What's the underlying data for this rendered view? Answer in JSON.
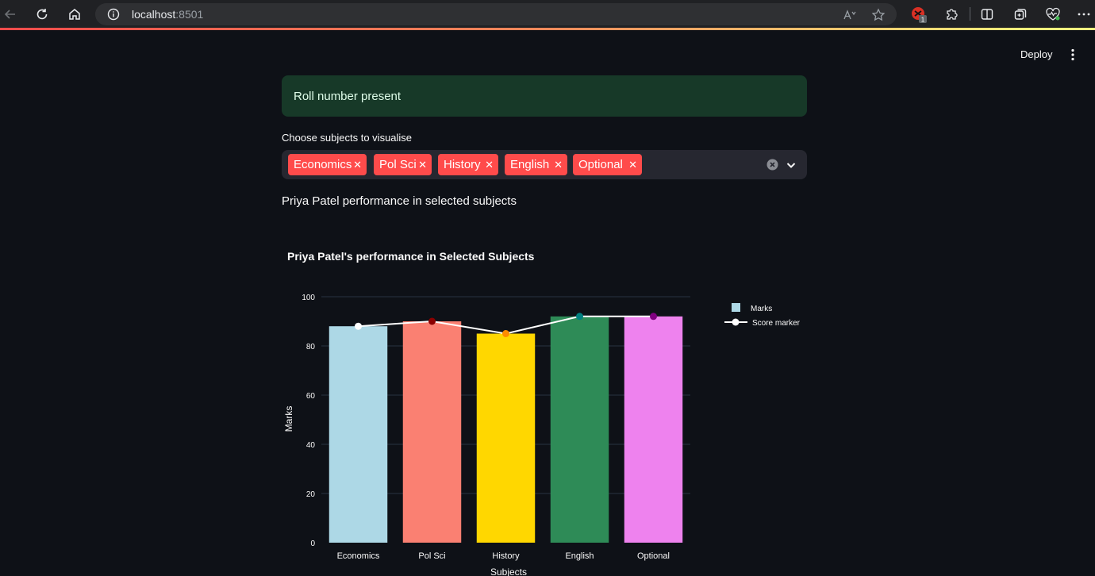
{
  "browser": {
    "url_host": "localhost",
    "url_port": ":8501",
    "extension_badge": "1"
  },
  "header": {
    "deploy_label": "Deploy"
  },
  "main": {
    "success_message": "Roll number present",
    "multiselect": {
      "label": "Choose subjects to visualise",
      "selected": [
        "Economics",
        "Pol Sci",
        "History",
        "English",
        "Optional"
      ]
    },
    "performance_text": "Priya Patel performance in selected subjects"
  },
  "colors": {
    "accent": "#ff4b4b",
    "success_bg": "#173928",
    "page_bg": "#0e1117"
  },
  "chart_data": {
    "type": "bar",
    "title": "Priya Patel's performance in Selected Subjects",
    "xlabel": "Subjects",
    "ylabel": "Marks",
    "ylim": [
      0,
      100
    ],
    "yticks": [
      0,
      20,
      40,
      60,
      80,
      100
    ],
    "categories": [
      "Economics",
      "Pol Sci",
      "History",
      "English",
      "Optional"
    ],
    "series": [
      {
        "name": "Marks",
        "type": "bar",
        "values": [
          88,
          90,
          85,
          92,
          92
        ],
        "colors": [
          "#add8e6",
          "#fa8072",
          "#ffd700",
          "#2e8b57",
          "#ee82ee"
        ]
      },
      {
        "name": "Score marker",
        "type": "line",
        "values": [
          88,
          90,
          85,
          92,
          92
        ],
        "line_color": "#ffffff",
        "marker_colors": [
          "#ffffff",
          "#8b0000",
          "#ff8c00",
          "#008080",
          "#800080"
        ]
      }
    ],
    "legend": "top-right",
    "grid": true
  }
}
